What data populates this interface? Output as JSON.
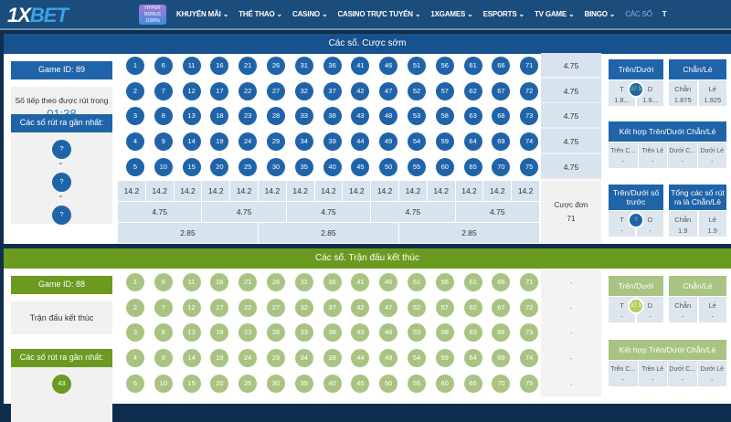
{
  "nav": {
    "logo_a": "1X",
    "logo_b": "BET",
    "promo": "HYPER BONUS 1000%",
    "items": [
      "KHUYẾN MÃI ⌄",
      "THỂ THAO ⌄",
      "CASINO ⌄",
      "CASINO TRỰC TUYẾN ⌄",
      "1XGAMES ⌄",
      "ESPORTS ⌄",
      "TV GAME ⌄",
      "BINGO ⌄",
      "CÁC SỐ",
      "T"
    ]
  },
  "balls": [
    1,
    2,
    3,
    4,
    5,
    6,
    7,
    8,
    9,
    10,
    11,
    12,
    13,
    14,
    15,
    16,
    17,
    18,
    19,
    20,
    21,
    22,
    23,
    24,
    25,
    26,
    27,
    28,
    29,
    30,
    31,
    32,
    33,
    34,
    35,
    36,
    37,
    38,
    39,
    40,
    41,
    42,
    43,
    44,
    45,
    46,
    47,
    48,
    49,
    50,
    51,
    52,
    53,
    54,
    55,
    56,
    57,
    58,
    59,
    60,
    61,
    62,
    63,
    64,
    65,
    66,
    67,
    68,
    69,
    70,
    71,
    72,
    73,
    74,
    75
  ],
  "colors": {
    "blue": "#1f63a8",
    "blue_dark": "#17528f",
    "green": "#6a9a1f",
    "green_light": "#a9c482"
  },
  "early": {
    "title": "Các số. Cược sớm",
    "game_id": "Game ID: 89",
    "next_label": "Số tiếp theo được rút trong",
    "timer": "01:38",
    "recent_label": "Các số rút ra gần nhất:",
    "recent": [
      "?",
      "?",
      "?"
    ],
    "col_odds": [
      "14.2",
      "14.2",
      "14.2",
      "14.2",
      "14.2",
      "14.2",
      "14.2",
      "14.2",
      "14.2",
      "14.2",
      "14.2",
      "14.2",
      "14.2",
      "14.2",
      "14.2"
    ],
    "group5_odds": [
      "4.75",
      "4.75",
      "4.75",
      "4.75",
      "4.75"
    ],
    "group3_odds": [
      "2.85",
      "2.85",
      "2.85"
    ],
    "row_odds": [
      "4.75",
      "4.75",
      "4.75",
      "4.75",
      "4.75"
    ],
    "single_label": "Cược đơn",
    "single_value": "71",
    "over_under": {
      "title": "Trên/Dưới",
      "left": "T",
      "left_val": "1.8...",
      "mid": "37.5",
      "right": "D",
      "right_val": "1.9..."
    },
    "even_odd": {
      "title": "Chẵn/Lẻ",
      "left": "Chẵn",
      "left_val": "1.875",
      "right": "Lẻ",
      "right_val": "1.925"
    },
    "combo": {
      "title": "Kết hợp Trên/Dưới Chẵn/Lẻ",
      "items": [
        {
          "l": "Trên C...",
          "v": "-"
        },
        {
          "l": "Trên Lẻ",
          "v": "-"
        },
        {
          "l": "Dưới C...",
          "v": "-"
        },
        {
          "l": "Dưới Lẻ",
          "v": "-"
        }
      ]
    },
    "prev_ou": {
      "title": "Trên/Dưới số trước",
      "left": "T",
      "left_val": "-",
      "mid": "?",
      "right": "D",
      "right_val": "-"
    },
    "sum_eo": {
      "title": "Tổng các số rút ra là Chẵn/Lẻ",
      "left": "Chẵn",
      "left_val": "1.9",
      "right": "Lẻ",
      "right_val": "1.9"
    }
  },
  "finished": {
    "title": "Các số. Trận đấu kết thúc",
    "game_id": "Game ID: 88",
    "status": "Trận đấu kết thúc",
    "recent_label": "Các số rút ra gần nhất:",
    "recent": [
      "43"
    ],
    "row_odds": [
      "-",
      "-",
      "-",
      "-",
      "-"
    ],
    "over_under": {
      "title": "Trên/Dưới",
      "left": "T",
      "left_val": "-",
      "mid": "37.5",
      "right": "D",
      "right_val": "-"
    },
    "even_odd": {
      "title": "Chẵn/Lẻ",
      "left": "Chẵn",
      "left_val": "-",
      "right": "Lẻ",
      "right_val": "-"
    },
    "combo": {
      "title": "Kết hợp Trên/Dưới Chẵn/Lẻ",
      "items": [
        {
          "l": "Trên C...",
          "v": "-"
        },
        {
          "l": "Trên Lẻ",
          "v": "-"
        },
        {
          "l": "Dưới C...",
          "v": "-"
        },
        {
          "l": "Dưới Lẻ",
          "v": "-"
        }
      ]
    }
  }
}
